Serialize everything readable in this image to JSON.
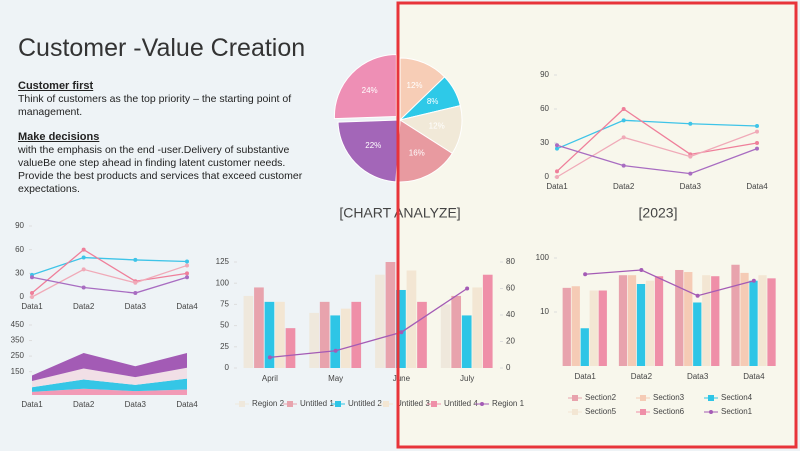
{
  "slide": {
    "title": "Customer -Value Creation",
    "sections": [
      {
        "heading": "Customer first",
        "text": "Think of customers as the top priority – the starting point of management."
      },
      {
        "heading": "Make decisions",
        "text": "with the emphasis on the end -user.Delivery of substantive valueBe one step ahead in finding latent customer needs. Provide the best products and services that exceed customer expectations."
      }
    ],
    "captions": [
      "[CHART ANALYZE]",
      "[2023]"
    ]
  },
  "chart_data": [
    {
      "type": "pie",
      "values": [
        12,
        8,
        12,
        16,
        22,
        24
      ],
      "value_labels": [
        "12%",
        "8%",
        "12%",
        "16%",
        "22%",
        "24%"
      ],
      "colors": [
        "#f7cdb6",
        "#2ec9e8",
        "#f1e9d8",
        "#e89aa0",
        "#a366b8",
        "#ee8fb5"
      ],
      "exploded": 5
    },
    {
      "type": "line",
      "categories": [
        "Data1",
        "Data2",
        "Data3",
        "Data4"
      ],
      "ylim": [
        0,
        90
      ],
      "yticks": [
        0,
        30,
        60,
        90
      ],
      "series": [
        {
          "color": "#3ec4e8",
          "values": [
            25,
            50,
            47,
            45
          ]
        },
        {
          "color": "#ef7f9a",
          "values": [
            5,
            60,
            20,
            30
          ]
        },
        {
          "color": "#f0aab8",
          "values": [
            0,
            35,
            18,
            40
          ]
        },
        {
          "color": "#a86cc1",
          "values": [
            28,
            10,
            3,
            25
          ]
        }
      ]
    },
    {
      "type": "line",
      "categories": [
        "Data1",
        "Data2",
        "Data3",
        "Data4"
      ],
      "ylim": [
        0,
        90
      ],
      "yticks": [
        0,
        30,
        60,
        90
      ],
      "series": [
        {
          "color": "#3ec4e8",
          "values": [
            28,
            50,
            47,
            45
          ]
        },
        {
          "color": "#ef7f9a",
          "values": [
            5,
            60,
            20,
            30
          ]
        },
        {
          "color": "#f0aab8",
          "values": [
            0,
            35,
            18,
            40
          ]
        },
        {
          "color": "#a86cc1",
          "values": [
            25,
            12,
            5,
            25
          ]
        }
      ]
    },
    {
      "type": "area",
      "stacked": true,
      "categories": [
        "Data1",
        "Data2",
        "Data3",
        "Data4"
      ],
      "ylim": [
        0,
        450
      ],
      "yticks": [
        150,
        250,
        350,
        450
      ],
      "series": [
        {
          "color": "#f29ab6",
          "values": [
            20,
            40,
            25,
            35
          ]
        },
        {
          "color": "#35c6e6",
          "values": [
            30,
            60,
            40,
            70
          ]
        },
        {
          "color": "#f1dfe6",
          "values": [
            40,
            70,
            50,
            70
          ]
        },
        {
          "color": "#a35bb5",
          "values": [
            35,
            100,
            70,
            95
          ]
        }
      ]
    },
    {
      "type": "bar",
      "categories": [
        "April",
        "May",
        "June",
        "July"
      ],
      "ylim": [
        0,
        125
      ],
      "yticks": [
        0,
        25,
        50,
        75,
        100,
        125
      ],
      "y2lim": [
        0,
        80
      ],
      "y2ticks": [
        0,
        20,
        40,
        60,
        80
      ],
      "series": [
        {
          "name": "Region 2",
          "color": "#efe8dc",
          "values": [
            85,
            65,
            110,
            75
          ]
        },
        {
          "name": "Untitled 1",
          "color": "#e8a3ad",
          "values": [
            95,
            78,
            125,
            85
          ]
        },
        {
          "name": "Untitled 2",
          "color": "#2ec5e6",
          "values": [
            78,
            62,
            92,
            62
          ]
        },
        {
          "name": "Untitled 3",
          "color": "#f3e6d3",
          "values": [
            78,
            70,
            115,
            95
          ]
        },
        {
          "name": "Untitled 4",
          "color": "#ef8fa8",
          "values": [
            47,
            78,
            78,
            110
          ]
        },
        {
          "name": "Region 1",
          "color": "#a45bb5",
          "type": "line",
          "axis": "y2",
          "values": [
            8,
            13,
            27,
            60
          ]
        }
      ]
    },
    {
      "type": "bar",
      "log_scale": true,
      "categories": [
        "Data1",
        "Data2",
        "Data3",
        "Data4"
      ],
      "ylim": [
        1,
        100
      ],
      "yticks": [
        10,
        100
      ],
      "series": [
        {
          "name": "Section2",
          "color": "#e8a3ad",
          "values": [
            28,
            48,
            60,
            75
          ]
        },
        {
          "name": "Section3",
          "color": "#f5cbb5",
          "values": [
            30,
            48,
            55,
            53
          ]
        },
        {
          "name": "Section4",
          "color": "#2ec5e6",
          "values": [
            5,
            33,
            15,
            38
          ]
        },
        {
          "name": "Section5",
          "color": "#f3e6d3",
          "values": [
            25,
            38,
            48,
            48
          ]
        },
        {
          "name": "Section6",
          "color": "#ef8fa8",
          "values": [
            25,
            46,
            46,
            42
          ]
        },
        {
          "name": "Section1",
          "color": "#a45bb5",
          "type": "line",
          "values": [
            50,
            60,
            20,
            38
          ]
        }
      ]
    }
  ]
}
